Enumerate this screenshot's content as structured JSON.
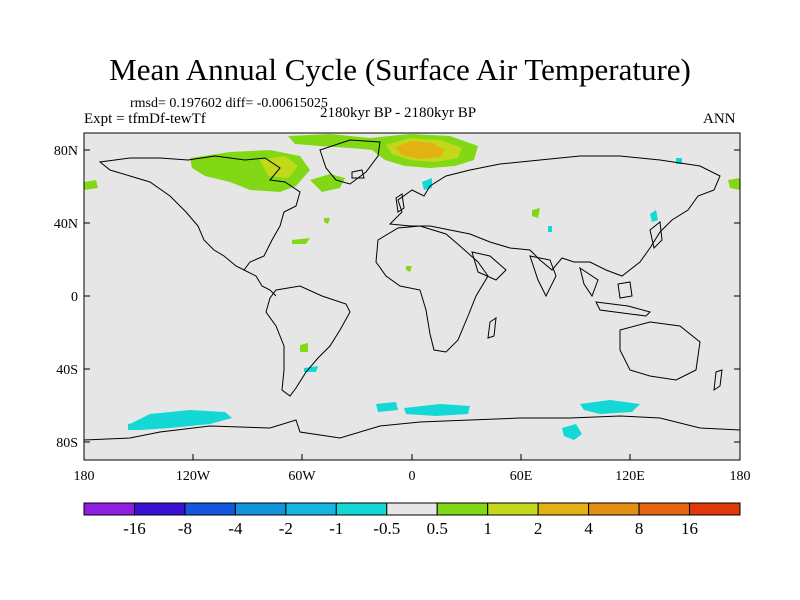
{
  "title": "Mean Annual Cycle (Surface Air Temperature)",
  "stats_text": "rmsd= 0.197602  diff= -0.00615025",
  "experiment": "Expt = tfmDf-tewTf",
  "period": "2180kyr BP - 2180kyr BP",
  "season": "ANN",
  "lat_labels": [
    "80N",
    "40N",
    "0",
    "40S",
    "80S"
  ],
  "lon_labels": [
    "180",
    "120W",
    "60W",
    "0",
    "60E",
    "120E",
    "180"
  ],
  "colorbar": {
    "colors": [
      "#8f1fe0",
      "#3a12d6",
      "#1356df",
      "#1493dd",
      "#15b6e0",
      "#14d8d6",
      "#e6e6e6",
      "#83d816",
      "#c3d818",
      "#e2b214",
      "#e38e14",
      "#e3650f",
      "#e0380b"
    ],
    "labels": [
      "-16",
      "-8",
      "-4",
      "-2",
      "-1",
      "-0.5",
      "0.5",
      "1",
      "2",
      "4",
      "8",
      "16"
    ]
  },
  "colors": {
    "background": "#e6e6e6",
    "coast": "#000000",
    "cyan": "#14d8d6",
    "green": "#83d816",
    "yellow": "#c3d818",
    "orange": "#e2b214"
  }
}
